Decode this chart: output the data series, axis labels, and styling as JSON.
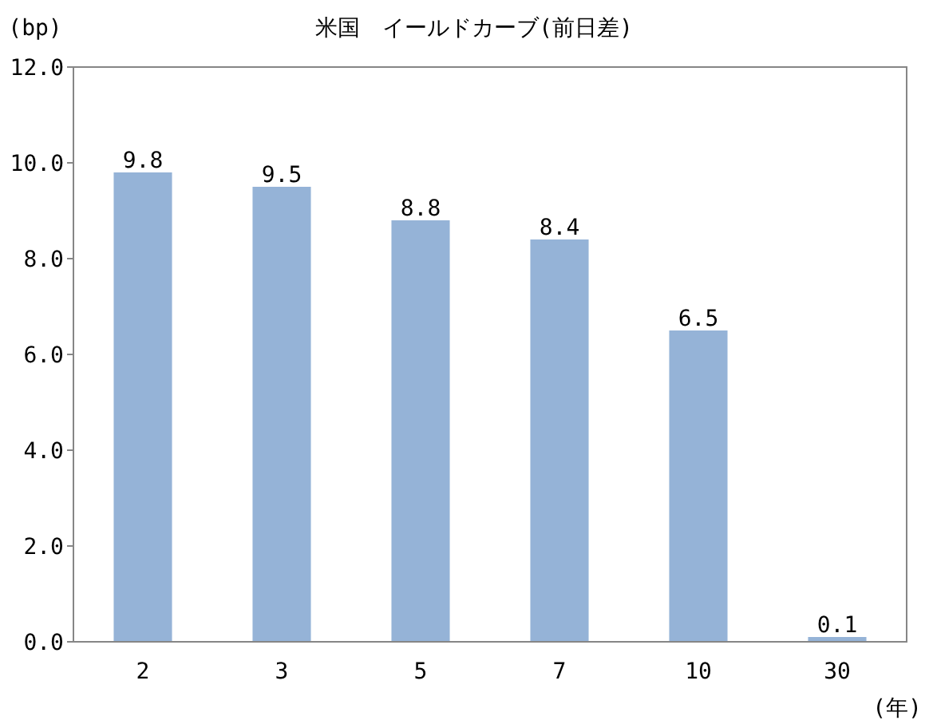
{
  "chart_data": {
    "type": "bar",
    "title": "米国　イールドカーブ(前日差)",
    "ylabel": "(bp)",
    "xlabel": "(年)",
    "categories": [
      "2",
      "3",
      "5",
      "7",
      "10",
      "30"
    ],
    "values": [
      9.8,
      9.5,
      8.8,
      8.4,
      6.5,
      0.1
    ],
    "color": "#95b3d7",
    "data_labels": true,
    "ylim": [
      0,
      12
    ],
    "yticks": [
      {
        "value": 0,
        "label": "0.0"
      },
      {
        "value": 2,
        "label": "2.0"
      },
      {
        "value": 4,
        "label": "4.0"
      },
      {
        "value": 6,
        "label": "6.0"
      },
      {
        "value": 8,
        "label": "8.0"
      },
      {
        "value": 10,
        "label": "10.0"
      },
      {
        "value": 12,
        "label": "12.0"
      }
    ]
  }
}
